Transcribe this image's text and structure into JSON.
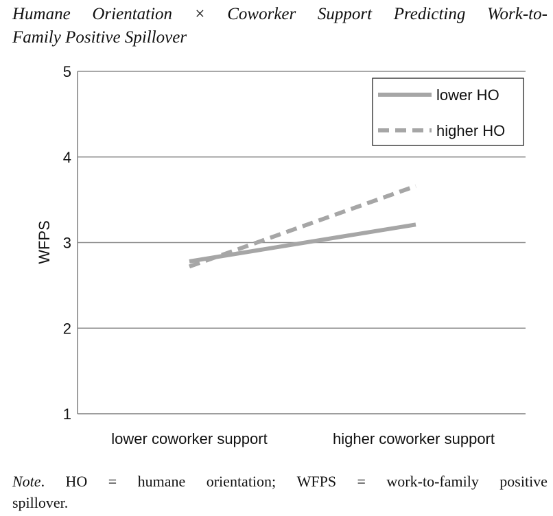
{
  "title": {
    "line1_words": [
      "Humane",
      "Orientation",
      "×",
      "Coworker",
      "Support",
      "Predicting",
      "Work-to-"
    ],
    "line2": "Family Positive Spillover"
  },
  "note": {
    "label": "Note",
    "line1_parts": [
      ". ",
      "HO",
      "=",
      "humane",
      "orientation;",
      "WFPS",
      "=",
      "work-to-family",
      "positive"
    ],
    "line2": "spillover."
  },
  "chart_data": {
    "type": "line",
    "title": "Humane Orientation × Coworker Support Predicting Work-to-Family Positive Spillover",
    "categories": [
      "lower coworker support",
      "higher coworker support"
    ],
    "ylabel": "WFPS",
    "xlabel": "",
    "ylim": [
      1,
      5
    ],
    "yticks": [
      1,
      2,
      3,
      4,
      5
    ],
    "grid": true,
    "legend_position": "top-right",
    "series": [
      {
        "name": "lower HO",
        "values": [
          2.78,
          3.21
        ],
        "style": "solid",
        "color": "#a6a6a6"
      },
      {
        "name": "higher HO",
        "values": [
          2.72,
          3.66
        ],
        "style": "dashed",
        "color": "#a6a6a6"
      }
    ]
  }
}
